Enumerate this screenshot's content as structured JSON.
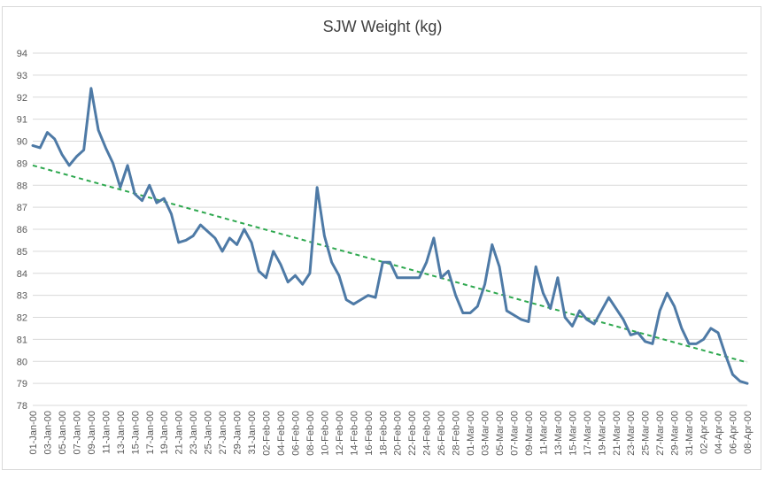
{
  "chart_data": {
    "type": "line",
    "title": "SJW Weight (kg)",
    "xlabel": "",
    "ylabel": "",
    "ylim": [
      78,
      94
    ],
    "y_ticks": [
      78,
      79,
      80,
      81,
      82,
      83,
      84,
      85,
      86,
      87,
      88,
      89,
      90,
      91,
      92,
      93,
      94
    ],
    "grid": "horizontal",
    "legend": "none",
    "x_start": "2000-01-01",
    "x_end": "2000-04-08",
    "x_tick_labels": [
      "01-Jan-00",
      "03-Jan-00",
      "05-Jan-00",
      "07-Jan-00",
      "09-Jan-00",
      "11-Jan-00",
      "13-Jan-00",
      "15-Jan-00",
      "17-Jan-00",
      "19-Jan-00",
      "21-Jan-00",
      "23-Jan-00",
      "25-Jan-00",
      "27-Jan-00",
      "29-Jan-00",
      "31-Jan-00",
      "02-Feb-00",
      "04-Feb-00",
      "06-Feb-00",
      "08-Feb-00",
      "10-Feb-00",
      "12-Feb-00",
      "14-Feb-00",
      "16-Feb-00",
      "18-Feb-00",
      "20-Feb-00",
      "22-Feb-00",
      "24-Feb-00",
      "26-Feb-00",
      "28-Feb-00",
      "01-Mar-00",
      "03-Mar-00",
      "05-Mar-00",
      "07-Mar-00",
      "09-Mar-00",
      "11-Mar-00",
      "13-Mar-00",
      "15-Mar-00",
      "17-Mar-00",
      "19-Mar-00",
      "21-Mar-00",
      "23-Mar-00",
      "25-Mar-00",
      "27-Mar-00",
      "29-Mar-00",
      "31-Mar-00",
      "02-Apr-00",
      "04-Apr-00",
      "06-Apr-00",
      "08-Apr-00"
    ],
    "series": [
      {
        "color": "#4e7aa6",
        "points": [
          [
            "2000-01-01",
            89.8
          ],
          [
            "2000-01-02",
            89.7
          ],
          [
            "2000-01-03",
            90.4
          ],
          [
            "2000-01-04",
            90.1
          ],
          [
            "2000-01-05",
            89.4
          ],
          [
            "2000-01-06",
            88.9
          ],
          [
            "2000-01-07",
            89.3
          ],
          [
            "2000-01-08",
            89.6
          ],
          [
            "2000-01-09",
            92.4
          ],
          [
            "2000-01-10",
            90.5
          ],
          [
            "2000-01-11",
            89.7
          ],
          [
            "2000-01-12",
            89.0
          ],
          [
            "2000-01-13",
            87.9
          ],
          [
            "2000-01-14",
            88.9
          ],
          [
            "2000-01-15",
            87.6
          ],
          [
            "2000-01-16",
            87.3
          ],
          [
            "2000-01-17",
            88.0
          ],
          [
            "2000-01-18",
            87.2
          ],
          [
            "2000-01-19",
            87.4
          ],
          [
            "2000-01-20",
            86.7
          ],
          [
            "2000-01-21",
            85.4
          ],
          [
            "2000-01-22",
            85.5
          ],
          [
            "2000-01-23",
            85.7
          ],
          [
            "2000-01-24",
            86.2
          ],
          [
            "2000-01-25",
            85.9
          ],
          [
            "2000-01-26",
            85.6
          ],
          [
            "2000-01-27",
            85.0
          ],
          [
            "2000-01-28",
            85.6
          ],
          [
            "2000-01-29",
            85.3
          ],
          [
            "2000-01-30",
            86.0
          ],
          [
            "2000-01-31",
            85.4
          ],
          [
            "2000-02-01",
            84.1
          ],
          [
            "2000-02-02",
            83.8
          ],
          [
            "2000-02-03",
            85.0
          ],
          [
            "2000-02-04",
            84.4
          ],
          [
            "2000-02-05",
            83.6
          ],
          [
            "2000-02-06",
            83.9
          ],
          [
            "2000-02-07",
            83.5
          ],
          [
            "2000-02-08",
            84.0
          ],
          [
            "2000-02-09",
            87.9
          ],
          [
            "2000-02-10",
            85.7
          ],
          [
            "2000-02-11",
            84.5
          ],
          [
            "2000-02-12",
            83.9
          ],
          [
            "2000-02-13",
            82.8
          ],
          [
            "2000-02-14",
            82.6
          ],
          [
            "2000-02-15",
            82.8
          ],
          [
            "2000-02-16",
            83.0
          ],
          [
            "2000-02-17",
            82.9
          ],
          [
            "2000-02-18",
            84.5
          ],
          [
            "2000-02-19",
            84.5
          ],
          [
            "2000-02-20",
            83.8
          ],
          [
            "2000-02-21",
            83.8
          ],
          [
            "2000-02-22",
            83.8
          ],
          [
            "2000-02-23",
            83.8
          ],
          [
            "2000-02-24",
            84.5
          ],
          [
            "2000-02-25",
            85.6
          ],
          [
            "2000-02-26",
            83.8
          ],
          [
            "2000-02-27",
            84.1
          ],
          [
            "2000-02-28",
            83.0
          ],
          [
            "2000-02-29",
            82.2
          ],
          [
            "2000-03-01",
            82.2
          ],
          [
            "2000-03-02",
            82.5
          ],
          [
            "2000-03-03",
            83.5
          ],
          [
            "2000-03-04",
            85.3
          ],
          [
            "2000-03-05",
            84.3
          ],
          [
            "2000-03-06",
            82.3
          ],
          [
            "2000-03-07",
            82.1
          ],
          [
            "2000-03-08",
            81.9
          ],
          [
            "2000-03-09",
            81.8
          ],
          [
            "2000-03-10",
            84.3
          ],
          [
            "2000-03-11",
            83.1
          ],
          [
            "2000-03-12",
            82.4
          ],
          [
            "2000-03-13",
            83.8
          ],
          [
            "2000-03-14",
            82.0
          ],
          [
            "2000-03-15",
            81.6
          ],
          [
            "2000-03-16",
            82.3
          ],
          [
            "2000-03-17",
            81.9
          ],
          [
            "2000-03-18",
            81.7
          ],
          [
            "2000-03-19",
            82.3
          ],
          [
            "2000-03-20",
            82.9
          ],
          [
            "2000-03-21",
            82.4
          ],
          [
            "2000-03-22",
            81.9
          ],
          [
            "2000-03-23",
            81.2
          ],
          [
            "2000-03-24",
            81.3
          ],
          [
            "2000-03-25",
            80.9
          ],
          [
            "2000-03-26",
            80.8
          ],
          [
            "2000-03-27",
            82.3
          ],
          [
            "2000-03-28",
            83.1
          ],
          [
            "2000-03-29",
            82.5
          ],
          [
            "2000-03-30",
            81.5
          ],
          [
            "2000-03-31",
            80.8
          ],
          [
            "2000-04-01",
            80.8
          ],
          [
            "2000-04-02",
            81.0
          ],
          [
            "2000-04-03",
            81.5
          ],
          [
            "2000-04-04",
            81.3
          ],
          [
            "2000-04-05",
            80.3
          ],
          [
            "2000-04-06",
            79.4
          ],
          [
            "2000-04-07",
            79.1
          ],
          [
            "2000-04-08",
            79.0
          ]
        ]
      }
    ],
    "trendline": {
      "type": "linear",
      "style": "dashed",
      "color": "#2ea84f",
      "start": [
        "2000-01-01",
        88.9
      ],
      "end": [
        "2000-04-08",
        79.95
      ]
    }
  }
}
